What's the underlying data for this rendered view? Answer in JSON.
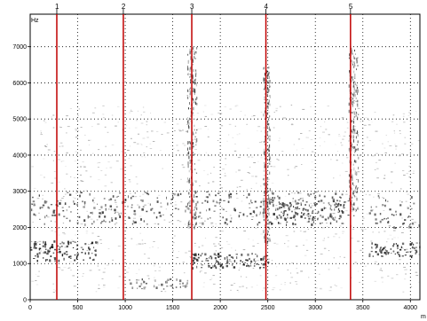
{
  "chart_data": {
    "type": "spectrogram",
    "title": "",
    "xlabel": "m",
    "ylabel": "Hz",
    "xlim": [
      0,
      4100
    ],
    "ylim": [
      0,
      7900
    ],
    "x_ticks": [
      0,
      500,
      1000,
      1500,
      2000,
      2500,
      3000,
      3500,
      4000
    ],
    "x_tick_labels": [
      "0",
      "500",
      "1000",
      "1500",
      "2000",
      "2500",
      "3000",
      "3500",
      "4000"
    ],
    "y_ticks": [
      0,
      1000,
      2000,
      3000,
      4000,
      5000,
      6000,
      7000
    ],
    "y_tick_labels": [
      "0",
      "1000",
      "2000",
      "3000",
      "4000",
      "5000",
      "6000",
      "7000"
    ],
    "grid": true,
    "grid_style": "dotted",
    "marker_color": "#c00000",
    "markers": [
      {
        "label": "1",
        "x": 280
      },
      {
        "label": "2",
        "x": 980
      },
      {
        "label": "3",
        "x": 1700
      },
      {
        "label": "4",
        "x": 2480
      },
      {
        "label": "5",
        "x": 3370
      }
    ],
    "energy_bands": [
      {
        "x": [
          0,
          700
        ],
        "y": [
          1100,
          1650
        ],
        "intensity": 0.9
      },
      {
        "x": [
          0,
          3400
        ],
        "y": [
          2100,
          3000
        ],
        "intensity": 0.6
      },
      {
        "x": [
          1700,
          2500
        ],
        "y": [
          900,
          1300
        ],
        "intensity": 0.85
      },
      {
        "x": [
          3550,
          4100
        ],
        "y": [
          1200,
          1600
        ],
        "intensity": 0.85
      },
      {
        "x": [
          3550,
          4100
        ],
        "y": [
          2000,
          2900
        ],
        "intensity": 0.55
      },
      {
        "x": [
          2500,
          3300
        ],
        "y": [
          2100,
          2800
        ],
        "intensity": 0.8
      },
      {
        "x": [
          1000,
          1650
        ],
        "y": [
          300,
          600
        ],
        "intensity": 0.4
      }
    ],
    "bursts": [
      {
        "x": [
          1650,
          1750
        ],
        "y": [
          2000,
          7000
        ]
      },
      {
        "x": [
          2450,
          2520
        ],
        "y": [
          1600,
          6500
        ]
      },
      {
        "x": [
          3350,
          3450
        ],
        "y": [
          2500,
          7000
        ]
      }
    ]
  }
}
